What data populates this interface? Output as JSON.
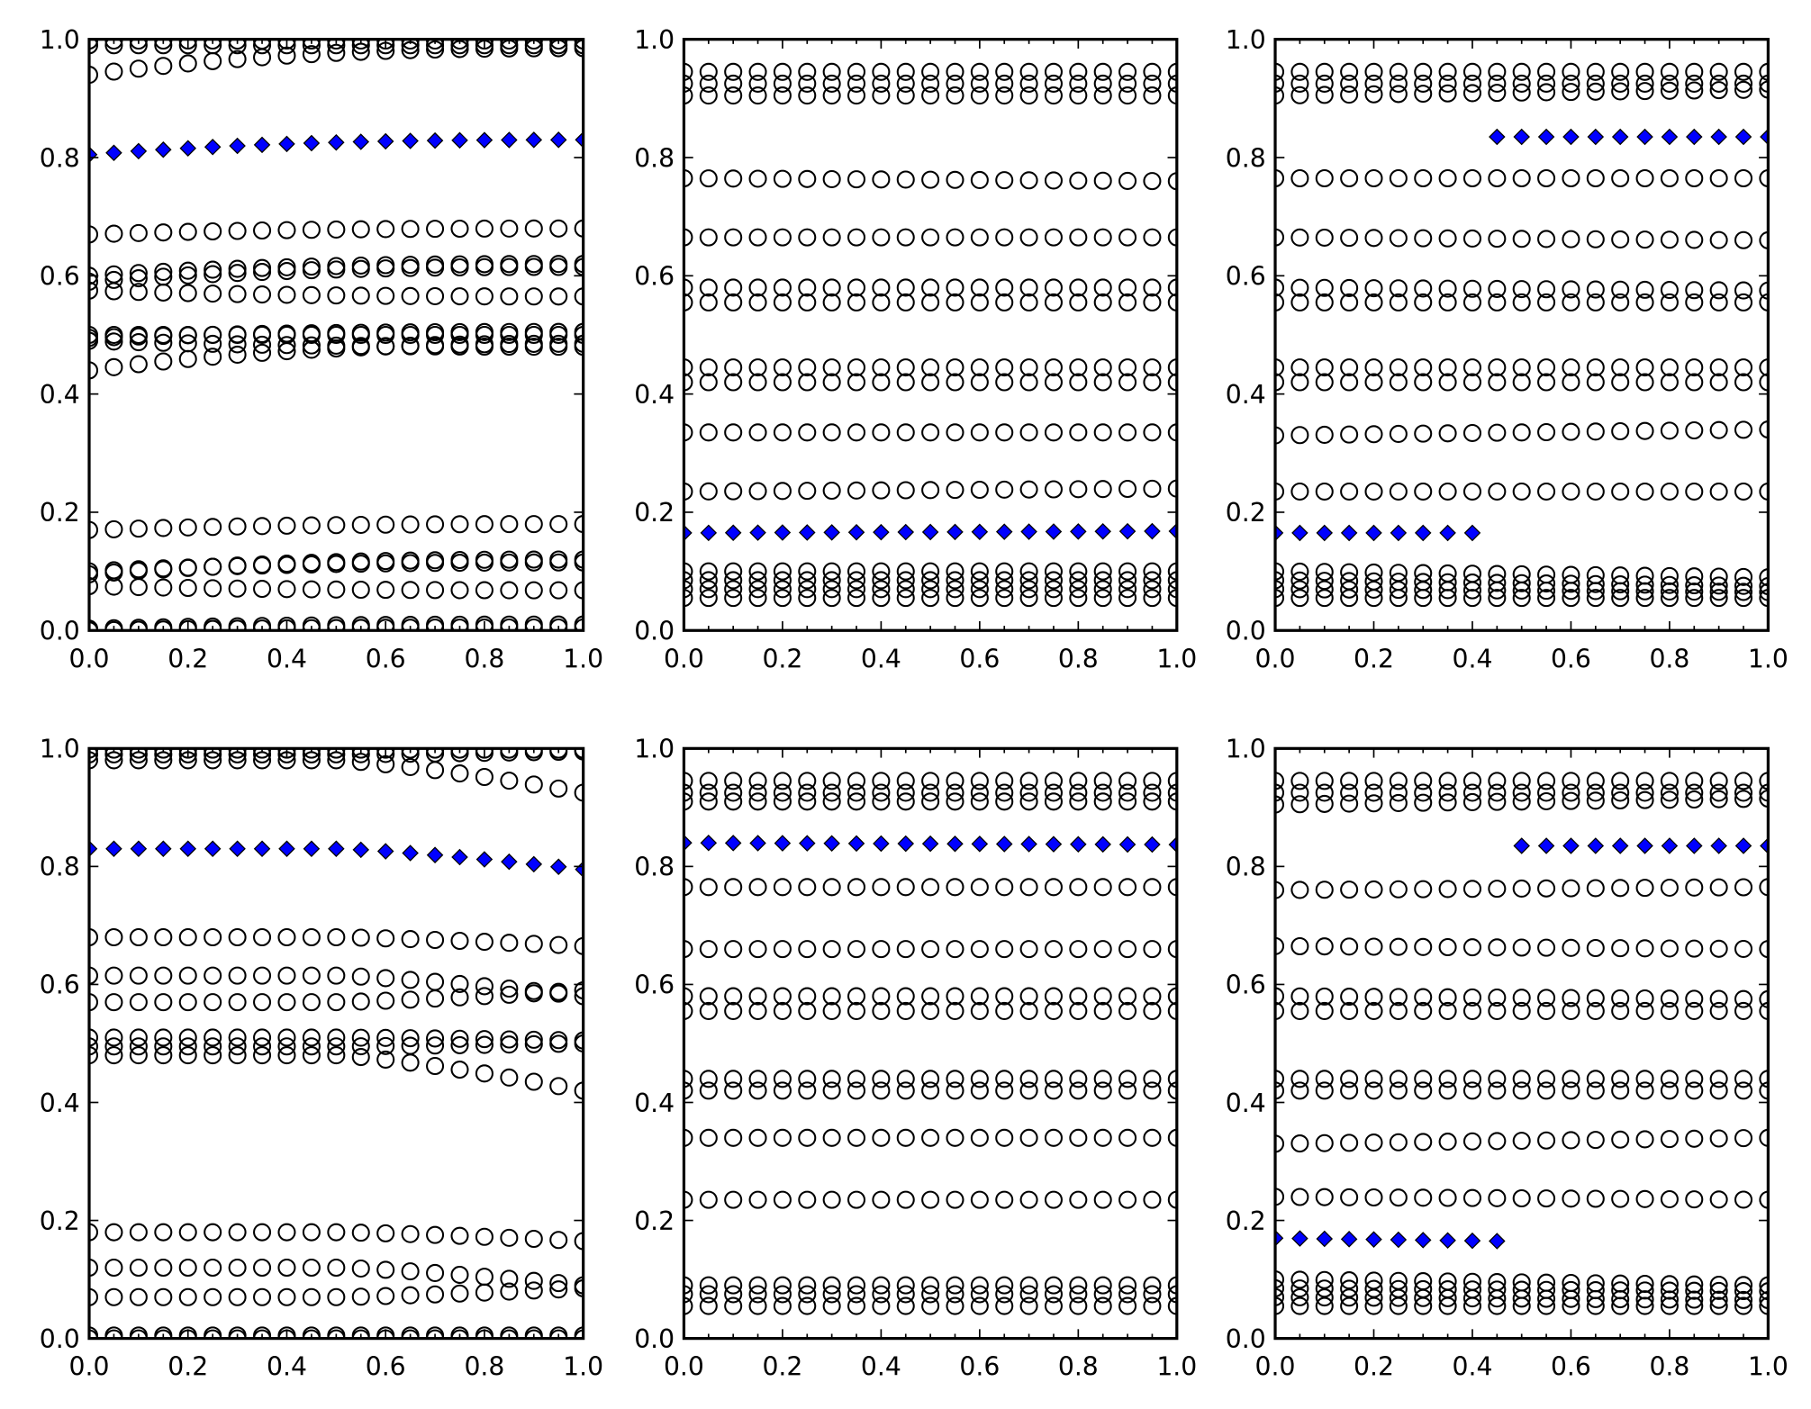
{
  "chart_data": [
    {
      "type": "scatter",
      "title": "",
      "xlabel": "",
      "ylabel": "",
      "xlim": [
        0,
        1
      ],
      "ylim": [
        0,
        1
      ],
      "grid": false,
      "x": "0.00 to 1.00 step 0.05",
      "xticks": [
        "0.0",
        "0.2",
        "0.4",
        "0.6",
        "0.8",
        "1.0"
      ],
      "yticks": [
        "0.0",
        "0.2",
        "0.4",
        "0.6",
        "0.8",
        "1.0"
      ],
      "trend": "saturating",
      "circle_series": [
        [
          0.0,
          0.005
        ],
        [
          0.003,
          0.01
        ],
        [
          0.075,
          0.068
        ],
        [
          0.095,
          0.12
        ],
        [
          0.1,
          0.115
        ],
        [
          0.17,
          0.18
        ],
        [
          0.44,
          0.485
        ],
        [
          0.49,
          0.48
        ],
        [
          0.5,
          0.5
        ],
        [
          0.495,
          0.505
        ],
        [
          0.575,
          0.565
        ],
        [
          0.59,
          0.615
        ],
        [
          0.6,
          0.62
        ],
        [
          0.67,
          0.68
        ],
        [
          0.94,
          0.985
        ],
        [
          0.99,
          0.99
        ],
        [
          0.998,
          0.998
        ]
      ],
      "diamond_series": {
        "values": [
          0.805,
          0.83
        ],
        "x_range": [
          0,
          1
        ]
      }
    },
    {
      "type": "scatter",
      "title": "",
      "xlabel": "",
      "ylabel": "",
      "xlim": [
        0,
        1
      ],
      "ylim": [
        0,
        1
      ],
      "grid": false,
      "x": "0.00 to 1.00 step 0.05",
      "xticks": [
        "0.0",
        "0.2",
        "0.4",
        "0.6",
        "0.8",
        "1.0"
      ],
      "yticks": [
        "0.0",
        "0.2",
        "0.4",
        "0.6",
        "0.8",
        "1.0"
      ],
      "trend": "flat",
      "circle_series": [
        [
          0.055,
          0.055
        ],
        [
          0.07,
          0.07
        ],
        [
          0.085,
          0.085
        ],
        [
          0.1,
          0.1
        ],
        [
          0.235,
          0.24
        ],
        [
          0.335,
          0.335
        ],
        [
          0.42,
          0.42
        ],
        [
          0.445,
          0.445
        ],
        [
          0.555,
          0.555
        ],
        [
          0.58,
          0.58
        ],
        [
          0.665,
          0.665
        ],
        [
          0.765,
          0.76
        ],
        [
          0.905,
          0.905
        ],
        [
          0.925,
          0.925
        ],
        [
          0.945,
          0.945
        ]
      ],
      "diamond_series": {
        "values": [
          0.165,
          0.168
        ],
        "x_range": [
          0,
          1
        ]
      }
    },
    {
      "type": "scatter",
      "title": "",
      "xlabel": "",
      "ylabel": "",
      "xlim": [
        0,
        1
      ],
      "ylim": [
        0,
        1
      ],
      "grid": false,
      "x": "0.00 to 1.00 step 0.05",
      "xticks": [
        "0.0",
        "0.2",
        "0.4",
        "0.6",
        "0.8",
        "1.0"
      ],
      "yticks": [
        "0.0",
        "0.2",
        "0.4",
        "0.6",
        "0.8",
        "1.0"
      ],
      "trend": "flat",
      "circle_series": [
        [
          0.055,
          0.055
        ],
        [
          0.07,
          0.065
        ],
        [
          0.085,
          0.075
        ],
        [
          0.1,
          0.09
        ],
        [
          0.235,
          0.235
        ],
        [
          0.33,
          0.34
        ],
        [
          0.42,
          0.42
        ],
        [
          0.445,
          0.445
        ],
        [
          0.555,
          0.555
        ],
        [
          0.58,
          0.575
        ],
        [
          0.665,
          0.66
        ],
        [
          0.765,
          0.765
        ],
        [
          0.905,
          0.915
        ],
        [
          0.925,
          0.925
        ],
        [
          0.945,
          0.945
        ]
      ],
      "diamond_series": [
        {
          "values": [
            0.165,
            0.165
          ],
          "x_range": [
            0,
            0.4
          ]
        },
        {
          "values": [
            0.835,
            0.835
          ],
          "x_range": [
            0.45,
            1
          ]
        }
      ]
    },
    {
      "type": "scatter",
      "title": "",
      "xlabel": "",
      "ylabel": "",
      "xlim": [
        0,
        1
      ],
      "ylim": [
        0,
        1
      ],
      "grid": false,
      "x": "0.00 to 1.00 step 0.05",
      "xticks": [
        "0.0",
        "0.2",
        "0.4",
        "0.6",
        "0.8",
        "1.0"
      ],
      "yticks": [
        "0.0",
        "0.2",
        "0.4",
        "0.6",
        "0.8",
        "1.0"
      ],
      "trend": "late-change",
      "circle_series": [
        [
          0.0,
          0.0
        ],
        [
          0.005,
          0.005
        ],
        [
          0.07,
          0.085
        ],
        [
          0.12,
          0.09
        ],
        [
          0.18,
          0.165
        ],
        [
          0.48,
          0.42
        ],
        [
          0.495,
          0.5
        ],
        [
          0.51,
          0.505
        ],
        [
          0.57,
          0.59
        ],
        [
          0.615,
          0.58
        ],
        [
          0.68,
          0.665
        ],
        [
          0.98,
          0.925
        ],
        [
          0.99,
          0.995
        ],
        [
          0.998,
          0.998
        ]
      ],
      "diamond_series": {
        "values": [
          0.83,
          0.795
        ],
        "x_range": [
          0,
          1
        ]
      }
    },
    {
      "type": "scatter",
      "title": "",
      "xlabel": "",
      "ylabel": "",
      "xlim": [
        0,
        1
      ],
      "ylim": [
        0,
        1
      ],
      "grid": false,
      "x": "0.00 to 1.00 step 0.05",
      "xticks": [
        "0.0",
        "0.2",
        "0.4",
        "0.6",
        "0.8",
        "1.0"
      ],
      "yticks": [
        "0.0",
        "0.2",
        "0.4",
        "0.6",
        "0.8",
        "1.0"
      ],
      "trend": "flat",
      "circle_series": [
        [
          0.055,
          0.055
        ],
        [
          0.075,
          0.075
        ],
        [
          0.09,
          0.09
        ],
        [
          0.235,
          0.235
        ],
        [
          0.34,
          0.34
        ],
        [
          0.42,
          0.42
        ],
        [
          0.44,
          0.44
        ],
        [
          0.555,
          0.555
        ],
        [
          0.58,
          0.58
        ],
        [
          0.66,
          0.66
        ],
        [
          0.765,
          0.765
        ],
        [
          0.91,
          0.91
        ],
        [
          0.925,
          0.925
        ],
        [
          0.945,
          0.945
        ]
      ],
      "diamond_series": {
        "values": [
          0.84,
          0.837
        ],
        "x_range": [
          0,
          1
        ]
      }
    },
    {
      "type": "scatter",
      "title": "",
      "xlabel": "",
      "ylabel": "",
      "xlim": [
        0,
        1
      ],
      "ylim": [
        0,
        1
      ],
      "grid": false,
      "x": "0.00 to 1.00 step 0.05",
      "xticks": [
        "0.0",
        "0.2",
        "0.4",
        "0.6",
        "0.8",
        "1.0"
      ],
      "yticks": [
        "0.0",
        "0.2",
        "0.4",
        "0.6",
        "0.8",
        "1.0"
      ],
      "trend": "flat",
      "circle_series": [
        [
          0.055,
          0.055
        ],
        [
          0.07,
          0.065
        ],
        [
          0.085,
          0.08
        ],
        [
          0.1,
          0.09
        ],
        [
          0.24,
          0.235
        ],
        [
          0.33,
          0.34
        ],
        [
          0.42,
          0.42
        ],
        [
          0.44,
          0.44
        ],
        [
          0.555,
          0.555
        ],
        [
          0.58,
          0.575
        ],
        [
          0.665,
          0.66
        ],
        [
          0.76,
          0.765
        ],
        [
          0.905,
          0.915
        ],
        [
          0.925,
          0.925
        ],
        [
          0.945,
          0.945
        ]
      ],
      "diamond_series": [
        {
          "values": [
            0.17,
            0.165
          ],
          "x_range": [
            0,
            0.45
          ]
        },
        {
          "values": [
            0.835,
            0.835
          ],
          "x_range": [
            0.5,
            1
          ]
        }
      ]
    }
  ],
  "colors": {
    "diamond": "#0000ff",
    "circle_edge": "#000000",
    "axes": "#000000"
  }
}
